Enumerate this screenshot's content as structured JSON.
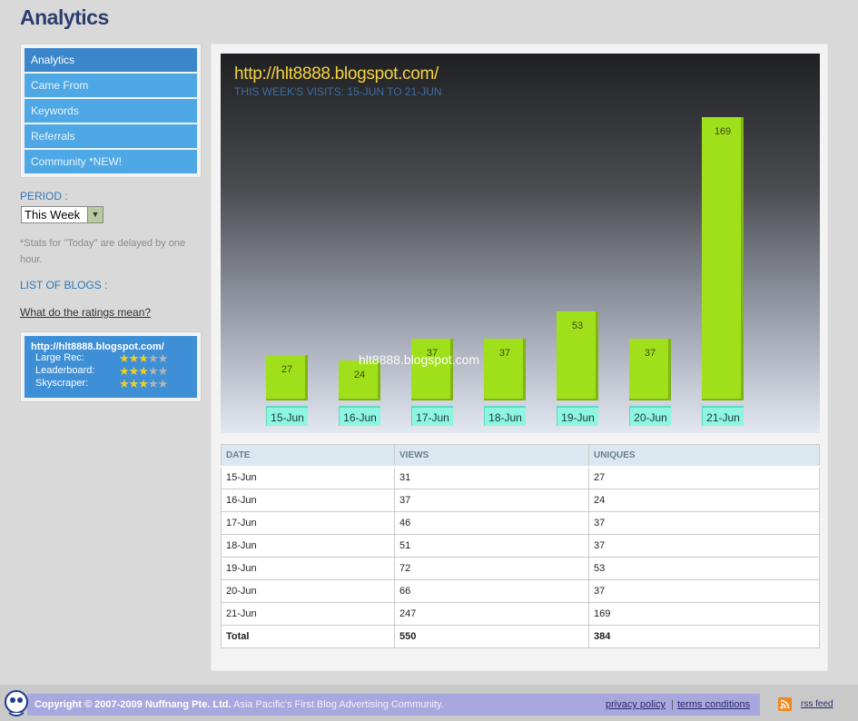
{
  "page": {
    "title": "Analytics"
  },
  "sidebar": {
    "nav": [
      "Analytics",
      "Came From",
      "Keywords",
      "Referrals",
      "Community *NEW!"
    ],
    "period_label": "PERIOD :",
    "period_value": "This Week",
    "note": "*Stats for \"Today\" are delayed by one hour.",
    "blogs_label": "LIST OF BLOGS :",
    "ratings_link": "What do the ratings mean?",
    "blog": {
      "name": "http://hlt8888.blogspot.com/",
      "ratings": [
        {
          "label": "Large Rec:",
          "stars": 3
        },
        {
          "label": "Leaderboard:",
          "stars": 3
        },
        {
          "label": "Skyscraper:",
          "stars": 3
        }
      ]
    }
  },
  "chart_data": {
    "type": "bar",
    "title": "http://hlt8888.blogspot.com/",
    "subtitle": "THIS WEEK'S VISITS: 15-JUN TO 21-JUN",
    "watermark": "hlt8888.blogspot.com",
    "categories": [
      "15-Jun",
      "16-Jun",
      "17-Jun",
      "18-Jun",
      "19-Jun",
      "20-Jun",
      "21-Jun"
    ],
    "values": [
      27,
      24,
      37,
      37,
      53,
      37,
      169
    ],
    "bar_color": "#a0e01a",
    "ylim": [
      0,
      169
    ]
  },
  "table": {
    "headers": [
      "DATE",
      "VIEWS",
      "UNIQUES"
    ],
    "rows": [
      [
        "15-Jun",
        "31",
        "27"
      ],
      [
        "16-Jun",
        "37",
        "24"
      ],
      [
        "17-Jun",
        "46",
        "37"
      ],
      [
        "18-Jun",
        "51",
        "37"
      ],
      [
        "19-Jun",
        "72",
        "53"
      ],
      [
        "20-Jun",
        "66",
        "37"
      ],
      [
        "21-Jun",
        "247",
        "169"
      ]
    ],
    "total": [
      "Total",
      "550",
      "384"
    ]
  },
  "footer": {
    "copyright": "Copyright © 2007-2009 Nuffnang Pte. Ltd.",
    "tagline": "Asia Pacific's First Blog Advertising Community.",
    "privacy": "privacy policy",
    "separator": "|",
    "terms": "terms conditions",
    "rss": "rss feed"
  }
}
